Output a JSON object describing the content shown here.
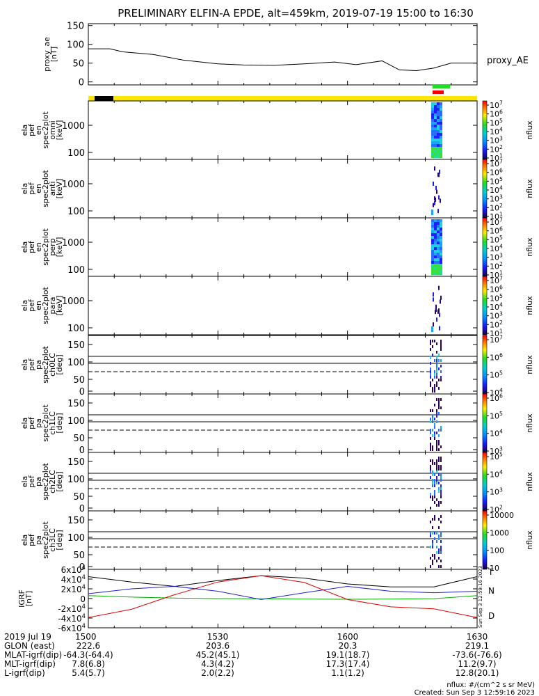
{
  "title": "PRELIMINARY ELFIN-A EPDE, alt=459km, 2019-07-19 15:00 to 16:30",
  "colors": {
    "bar_yellow": "#ffe600",
    "bar_black": "#000000",
    "bar_green": "#22dd22",
    "bar_red": "#ee0000",
    "gsm_x": "#000000",
    "gsm_y": "#1f1fd0",
    "gsm_z": "#e00000",
    "gsm_n": "#00b000"
  },
  "panels": {
    "proxy": {
      "ylabel": [
        "proxy_ae",
        "[nT]"
      ],
      "legend": "proxy_AE",
      "ticks": [
        "150",
        "100",
        "50",
        "0"
      ]
    },
    "spec": [
      {
        "ylabel": [
          "ela",
          "pef",
          "en",
          "spec2plot",
          "omni",
          "[keV]"
        ],
        "ticks": [
          "1000",
          "100"
        ],
        "cb_label": "nflux"
      },
      {
        "ylabel": [
          "ela",
          "pef",
          "en",
          "spec2plot",
          "anti",
          "[keV]"
        ],
        "ticks": [
          "1000",
          "100"
        ],
        "cb_label": "nflux"
      },
      {
        "ylabel": [
          "ela",
          "pef",
          "en",
          "spec2plot",
          "perp",
          "[keV]"
        ],
        "ticks": [
          "1000",
          "100"
        ],
        "cb_label": "nflux"
      },
      {
        "ylabel": [
          "ela",
          "pef",
          "en",
          "spec2plot",
          "para",
          "[keV]"
        ],
        "ticks": [
          "1000",
          "100"
        ],
        "cb_label": "nflux"
      },
      {
        "ylabel": [
          "ela",
          "pef",
          "pa",
          "spec2plot",
          "ch0LC",
          "[deg]"
        ],
        "ticks": [
          "150",
          "100",
          "50",
          "0"
        ],
        "cb_label": "nflux"
      },
      {
        "ylabel": [
          "ela",
          "pef",
          "pa",
          "spec2plot",
          "ch1LC",
          "[deg]"
        ],
        "ticks": [
          "150",
          "100",
          "50",
          "0"
        ],
        "cb_label": "nflux"
      },
      {
        "ylabel": [
          "ela",
          "pef",
          "pa",
          "spec2plot",
          "ch2LC",
          "[deg]"
        ],
        "ticks": [
          "150",
          "100",
          "50",
          "0"
        ],
        "cb_label": "nflux"
      },
      {
        "ylabel": [
          "ela",
          "pef",
          "pa",
          "spec2plot",
          "ch3LC",
          "[deg]"
        ],
        "ticks": [
          "150",
          "100",
          "50",
          "0"
        ],
        "cb_label": "nflux"
      }
    ],
    "colorbars": [
      [
        "10^7",
        "10^6",
        "10^5",
        "10^4",
        "10^3",
        "10^2",
        "10^1"
      ],
      [
        "10^7",
        "10^6",
        "10^5",
        "10^4",
        "10^3",
        "10^2",
        "10^1"
      ],
      [
        "10^7",
        "10^6",
        "10^5",
        "10^4",
        "10^3",
        "10^2",
        "10^1"
      ],
      [
        "10^7",
        "10^6",
        "10^5",
        "10^4",
        "10^3",
        "10^2",
        "10^1"
      ],
      [
        "10^7",
        "10^6",
        "10^5",
        "10^4"
      ],
      [
        "10^6",
        "10^5",
        "10^4",
        "10^3"
      ],
      [
        "10^5",
        "10^4",
        "10^3",
        "10^2"
      ],
      [
        "10000",
        "1000",
        "100",
        "10"
      ]
    ],
    "gsm": {
      "ylabel": [
        "IGRF",
        "[nT]"
      ],
      "ticks": [
        "6x10^4",
        "4x10^4",
        "2x10^4",
        "0",
        "-2x10^4",
        "-4x10^4",
        "-6x10^4"
      ],
      "labels": [
        "T",
        "N",
        "D"
      ],
      "created_side": "Sun Sep 3 12:59:16 2023"
    }
  },
  "xaxis": {
    "ticks": [
      "1500",
      "1530",
      "1600",
      "1630"
    ],
    "rows": [
      {
        "label": "2019 Jul 19",
        "values": [
          "1500",
          "1530",
          "1600",
          "1630"
        ]
      },
      {
        "label": "GLON (east)",
        "values": [
          "222.6",
          "203.6",
          "20.3",
          "219.1"
        ]
      },
      {
        "label": "MLAT-igrf(dip)",
        "values": [
          "-64.3(-64.4)",
          "45.2(45.1)",
          "19.1(18.7)",
          "-73.6(-76.6)"
        ]
      },
      {
        "label": "MLT-igrf(dip)",
        "values": [
          "7.8(6.8)",
          "4.3(4.2)",
          "17.3(17.4)",
          "11.2(9.7)"
        ]
      },
      {
        "label": "L-igrf(dip)",
        "values": [
          "5.4(5.7)",
          "2.0(2.2)",
          "1.1(1.2)",
          "12.8(20.1)"
        ]
      }
    ]
  },
  "footer": {
    "units": "nflux: #/(cm^2 s sr MeV)",
    "created": "Created: Sun Sep  3 12:59:16 2023"
  },
  "chart_data": {
    "type": "line",
    "title": "PRELIMINARY ELFIN-A EPDE, alt=459km, 2019-07-19 15:00 to 16:30",
    "xlabel": "",
    "xlim": [
      0,
      90
    ],
    "x_tick_labels": [
      "1500",
      "1530",
      "1600",
      "1630"
    ],
    "grid": false,
    "panels": [
      {
        "name": "proxy_AE",
        "ylabel": "proxy_ae [nT]",
        "ylim": [
          -8,
          155
        ],
        "x": [
          0,
          5,
          8,
          15,
          22,
          30,
          36,
          43,
          50,
          57,
          62,
          68,
          72,
          76,
          80,
          84,
          90
        ],
        "y": [
          88,
          88,
          80,
          73,
          58,
          48,
          45,
          44,
          48,
          53,
          46,
          56,
          32,
          30,
          37,
          50,
          50
        ]
      },
      {
        "name": "IGRF",
        "ylabel": "IGRF [nT]",
        "ylim": [
          -60000,
          60000
        ],
        "series": [
          {
            "name": "T",
            "x": [
              0,
              10,
              20,
              30,
              40,
              50,
              60,
              70,
              80,
              90
            ],
            "y": [
              45000,
              34000,
              25000,
              37000,
              47000,
              42000,
              30000,
              24000,
              24000,
              45000
            ]
          },
          {
            "name": "N",
            "x": [
              0,
              10,
              20,
              30,
              40,
              50,
              60,
              70,
              80,
              90
            ],
            "y": [
              6000,
              3000,
              1000,
              0,
              -500,
              -1000,
              -1500,
              -1000,
              -200,
              6000
            ]
          },
          {
            "name": "D",
            "x": [
              0,
              10,
              20,
              30,
              40,
              50,
              60,
              70,
              80,
              90
            ],
            "y": [
              -39000,
              -22000,
              8000,
              34000,
              47000,
              33000,
              -2000,
              -17000,
              -21000,
              -39000
            ]
          },
          {
            "name": "",
            "x": [
              0,
              10,
              20,
              30,
              40,
              50,
              60,
              70,
              80,
              90
            ],
            "y": [
              10000,
              20000,
              25000,
              15000,
              -2000,
              12000,
              25000,
              15000,
              12000,
              15000
            ]
          }
        ]
      }
    ]
  }
}
